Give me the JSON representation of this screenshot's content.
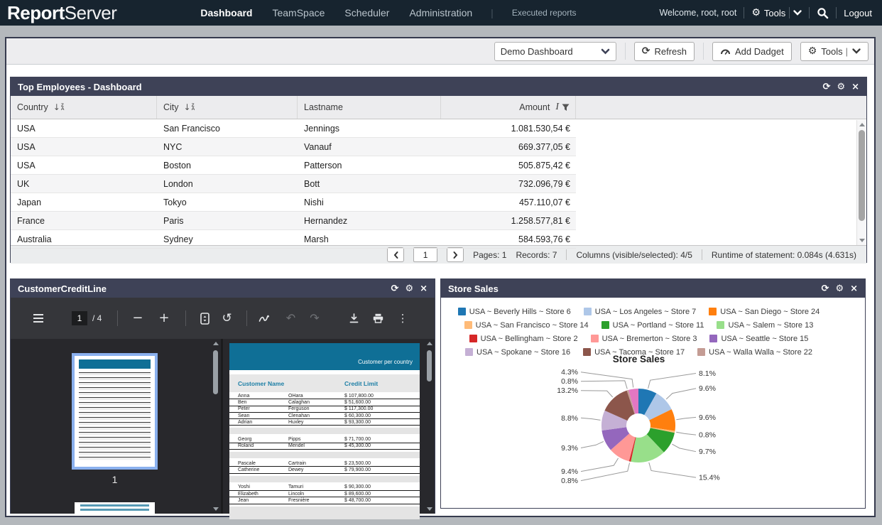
{
  "theme": {
    "nav_bg": "#17242f",
    "panel_header": "#3e4257",
    "page_bg": "#b4b8bc",
    "toolbar_bg": "#ededef",
    "pdf_teal": "#0f6f96",
    "select_blue": "#8ab0ee"
  },
  "nav": {
    "logo": {
      "bold": "Report",
      "light": "Server"
    },
    "items": [
      {
        "label": "Dashboard",
        "active": true
      },
      {
        "label": "TeamSpace",
        "active": false
      },
      {
        "label": "Scheduler",
        "active": false
      },
      {
        "label": "Administration",
        "active": false
      }
    ],
    "secondary": "Executed reports",
    "welcome": "Welcome, root, root",
    "tools_label": "Tools",
    "logout_label": "Logout"
  },
  "toolbar": {
    "dashboard_select": "Demo Dashboard",
    "refresh_label": "Refresh",
    "add_dadget_label": "Add Dadget",
    "tools_label": "Tools"
  },
  "top_employees": {
    "title": "Top Employees - Dashboard",
    "columns": [
      "Country",
      "City",
      "Lastname",
      "Amount"
    ],
    "rows": [
      [
        "USA",
        "San Francisco",
        "Jennings",
        "1.081.530,54 €"
      ],
      [
        "USA",
        "NYC",
        "Vanauf",
        "669.377,05 €"
      ],
      [
        "USA",
        "Boston",
        "Patterson",
        "505.875,42 €"
      ],
      [
        "UK",
        "London",
        "Bott",
        "732.096,79 €"
      ],
      [
        "Japan",
        "Tokyo",
        "Nishi",
        "457.110,07 €"
      ],
      [
        "France",
        "Paris",
        "Hernandez",
        "1.258.577,81 €"
      ],
      [
        "Australia",
        "Sydney",
        "Marsh",
        "584.593,76 €"
      ]
    ],
    "pagination": {
      "page": "1",
      "pages_label": "Pages: 1",
      "records_label": "Records: 7",
      "columns_label": "Columns (visible/selected): 4/5",
      "runtime_label": "Runtime of statement: 0.084s (4.631s)"
    }
  },
  "customer_credit": {
    "title": "CustomerCreditLine",
    "pdf_toolbar": {
      "page": "1",
      "of_label": "/ 4"
    },
    "thumbnail_label": "1",
    "doc": {
      "band_title": "Customer per country",
      "columns": [
        "Customer Name",
        "Credit Limit"
      ],
      "groups": [
        [
          [
            "Anna",
            "OHara",
            "$ 107,800.00"
          ],
          [
            "Ben",
            "Calaghan",
            "$ 51,600.00"
          ],
          [
            "Peter",
            "Ferguson",
            "$ 117,300.00"
          ],
          [
            "Sean",
            "Clenahan",
            "$ 60,300.00"
          ],
          [
            "Adrian",
            "Huxley",
            "$ 93,300.00"
          ]
        ],
        [
          [
            "Georg",
            "Pipps",
            "$ 71,700.00"
          ],
          [
            "Roland",
            "Mendel",
            "$ 45,300.00"
          ]
        ],
        [
          [
            "Pascale",
            "Cartrain",
            "$ 23,500.00"
          ],
          [
            "Catherine",
            "Dewey",
            "$ 79,900.00"
          ]
        ],
        [
          [
            "Yoshi",
            "Tamuri",
            "$ 90,300.00"
          ],
          [
            "Elizabeth",
            "Lincoln",
            "$ 89,600.00"
          ],
          [
            "Jean",
            "Fresnière",
            "$ 48,700.00"
          ]
        ]
      ]
    }
  },
  "store_sales": {
    "title": "Store Sales"
  },
  "chart_data": {
    "type": "pie",
    "donut": true,
    "title": "Store Sales",
    "legend_position": "top",
    "values_pct": [
      8.1,
      9.6,
      9.6,
      0.8,
      9.7,
      15.4,
      0.8,
      9.4,
      9.3,
      8.8,
      13.2,
      0.8,
      4.3
    ],
    "labels": [
      "USA ~ Beverly Hills ~ Store 6",
      "USA ~ Los Angeles ~ Store 7",
      "USA ~ San Diego ~ Store 24",
      "USA ~ San Francisco ~ Store 14",
      "USA ~ Portland ~ Store 11",
      "USA ~ Salem ~ Store 13",
      "USA ~ Bellingham ~ Store 2",
      "USA ~ Bremerton ~ Store 3",
      "USA ~ Seattle ~ Store 15",
      "USA ~ Spokane ~ Store 16",
      "USA ~ Tacoma ~ Store 17",
      "USA ~ Walla Walla ~ Store 22",
      ""
    ],
    "colors": [
      "#1f77b4",
      "#aec7e8",
      "#ff7f0e",
      "#ffbb78",
      "#2ca02c",
      "#98df8a",
      "#d62728",
      "#ff9896",
      "#9467bd",
      "#c5b0d5",
      "#8c564b",
      "#c49c94",
      "#e377c2"
    ]
  }
}
